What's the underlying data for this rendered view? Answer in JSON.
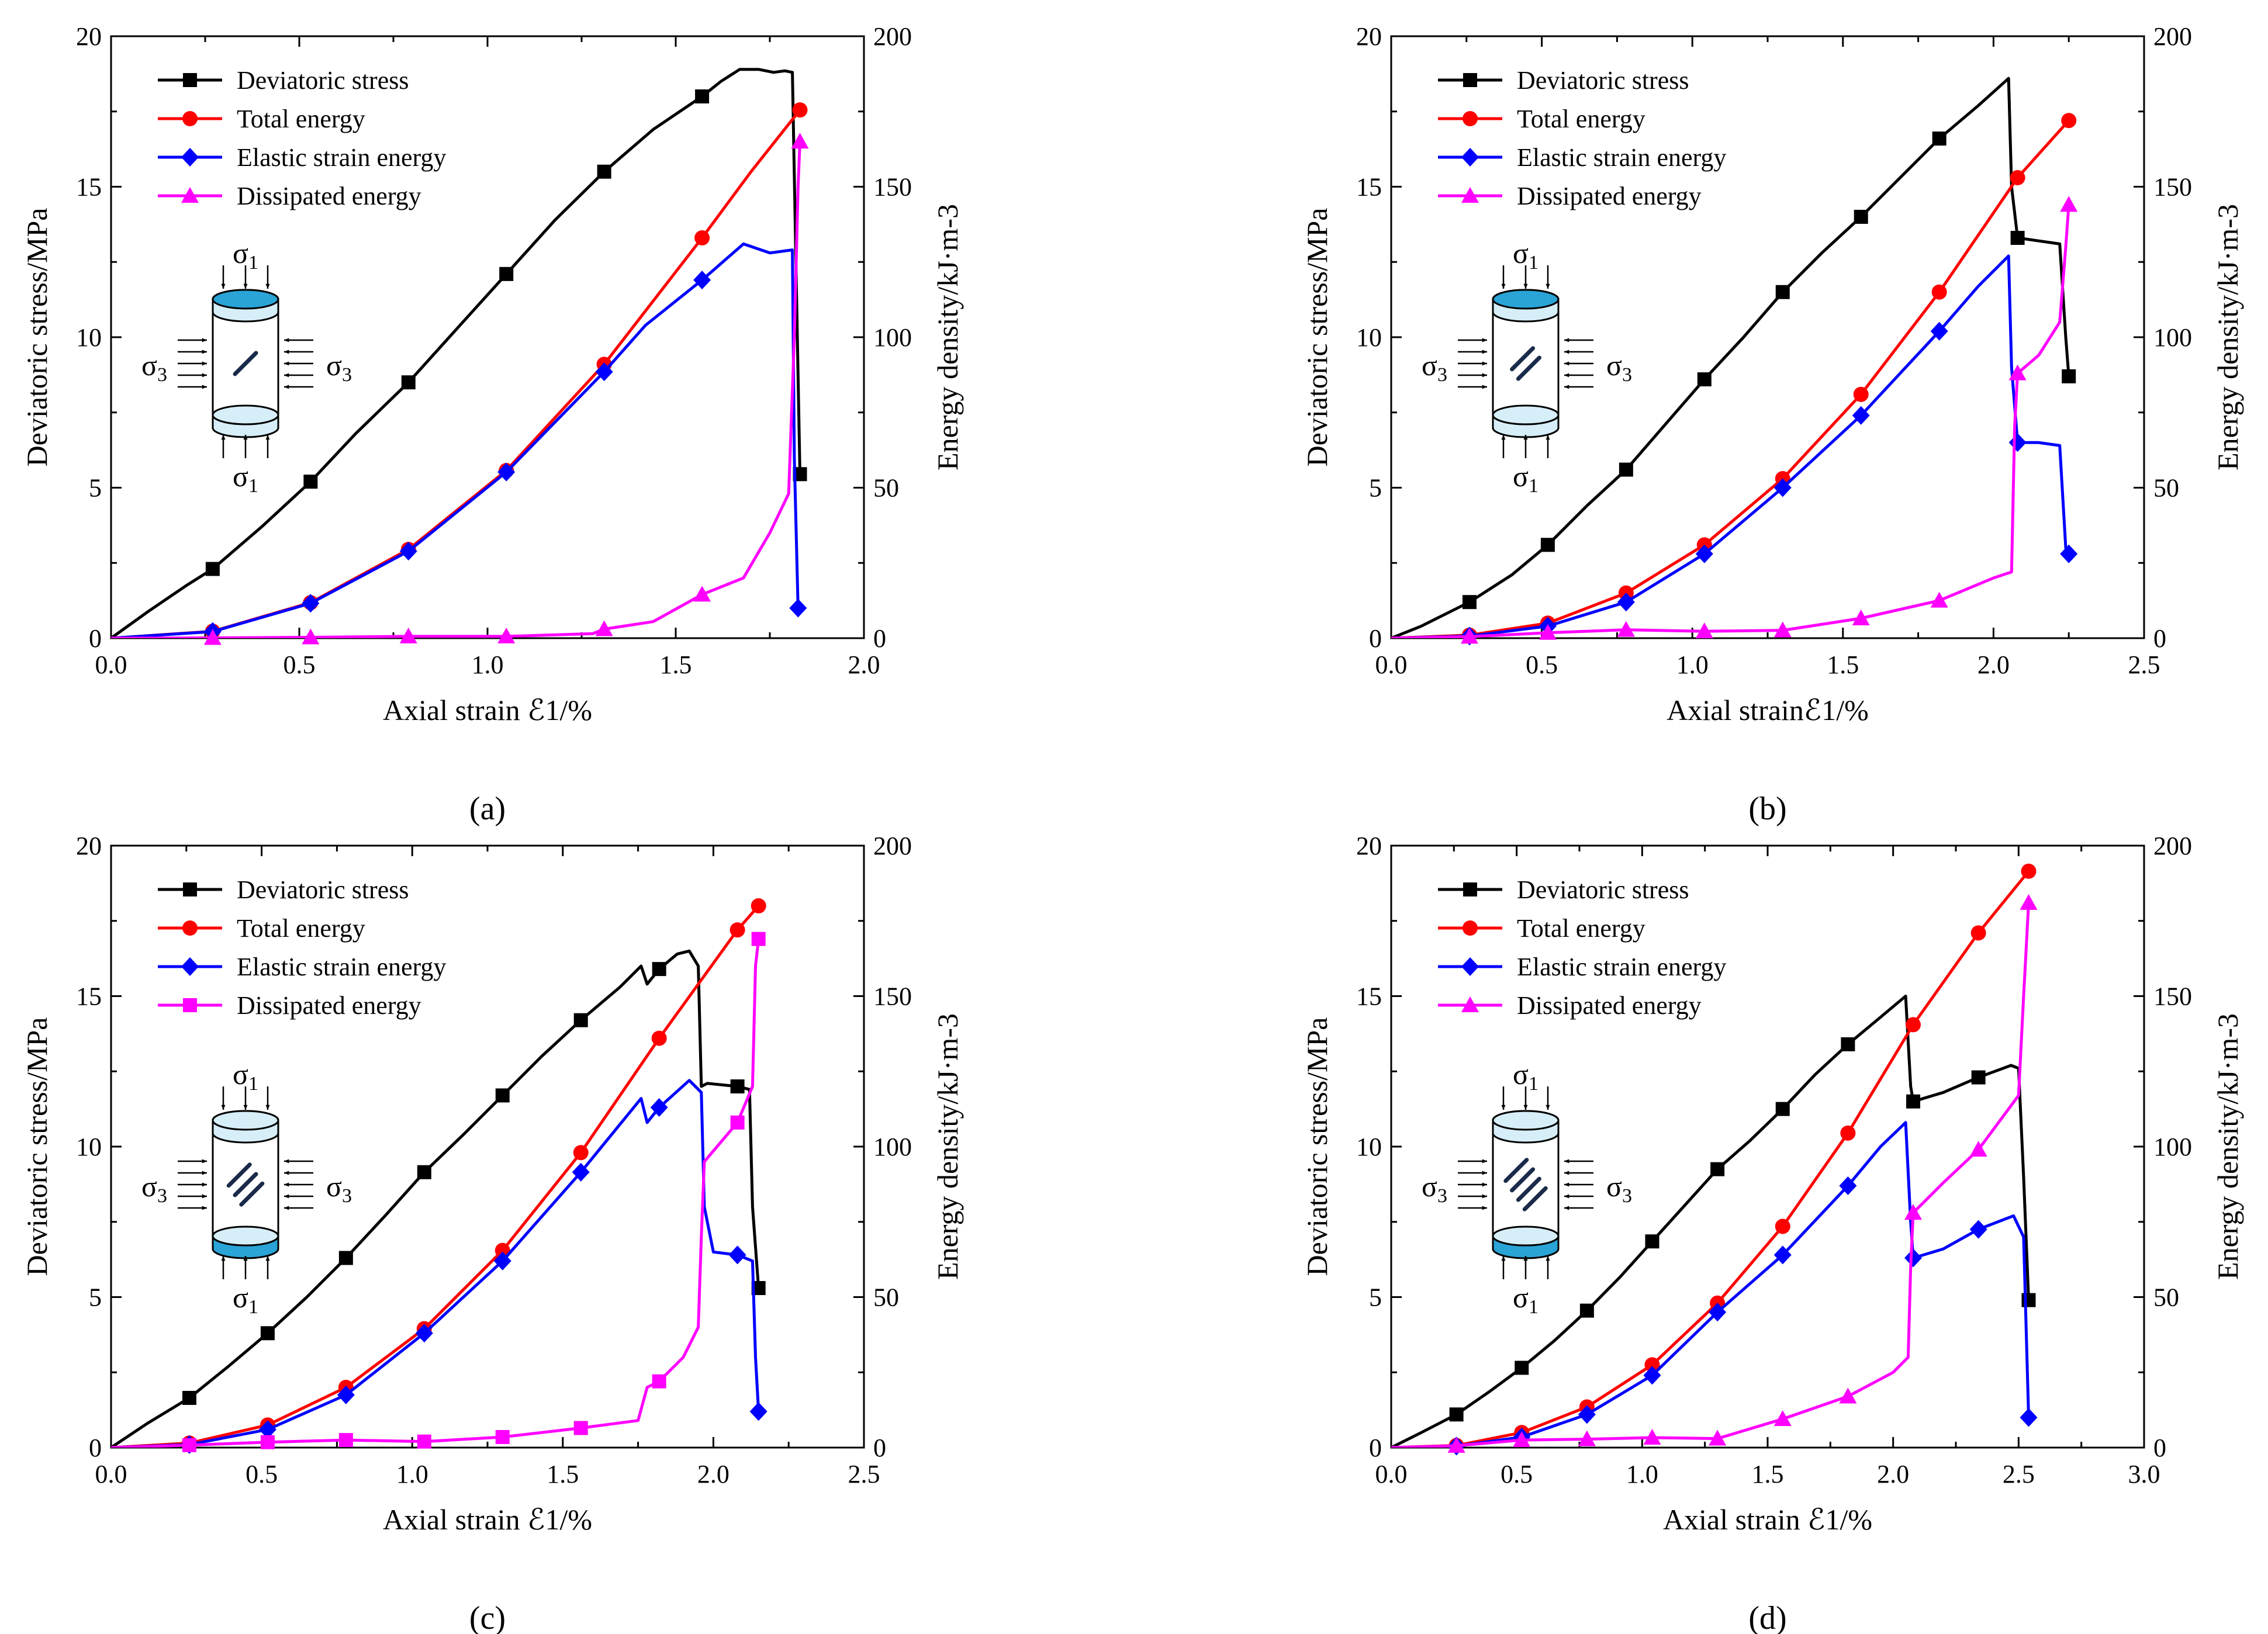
{
  "figure": {
    "panel_labels": [
      "(a)",
      "(b)",
      "(c)",
      "(d)"
    ],
    "sigma_top": "σ",
    "sigma_top_sub": "1",
    "sigma_side": "σ",
    "sigma_side_sub": "3",
    "colors": {
      "deviatoric": "#000000",
      "total": "#ff0000",
      "elastic": "#0000ff",
      "dissipated": "#ff00ff",
      "specimen_light": "#d6eef8",
      "specimen_accent": "#2aa3d6",
      "fracture": "#1a2a4a"
    }
  },
  "chart_data": [
    {
      "type": "line",
      "panel": "(a)",
      "xlabel": "Axial strain ℰ1/%",
      "ylabel": "Deviatoric stress/MPa",
      "y2label": "Energy density/kJ·m-3",
      "xlim": [
        0,
        2.0
      ],
      "xticks": [
        "0.0",
        "0.5",
        "1.0",
        "1.5",
        "2.0"
      ],
      "ylim": [
        0,
        20
      ],
      "yticks": [
        "0",
        "5",
        "10",
        "15",
        "20"
      ],
      "y2lim": [
        0,
        200
      ],
      "y2ticks": [
        "0",
        "50",
        "100",
        "150",
        "200"
      ],
      "specimen": {
        "cracks": 1,
        "accent": "top"
      },
      "series": [
        {
          "name": "Deviatoric stress",
          "axis": "left",
          "marker": "square",
          "x": [
            0,
            0.1,
            0.2,
            0.27,
            0.4,
            0.53,
            0.65,
            0.79,
            0.92,
            1.05,
            1.18,
            1.31,
            1.44,
            1.57,
            1.62,
            1.67,
            1.72,
            1.76,
            1.79,
            1.81,
            1.82,
            1.83
          ],
          "y": [
            0,
            0.9,
            1.75,
            2.3,
            3.7,
            5.2,
            6.8,
            8.5,
            10.3,
            12.1,
            13.9,
            15.5,
            16.9,
            18.0,
            18.5,
            18.9,
            18.9,
            18.8,
            18.85,
            18.8,
            12.0,
            5.45
          ],
          "markers_x": [
            0.27,
            0.53,
            0.79,
            1.05,
            1.31,
            1.57,
            1.83
          ]
        },
        {
          "name": "Total energy",
          "axis": "right",
          "marker": "circle",
          "x": [
            0,
            0.27,
            0.53,
            0.79,
            1.05,
            1.31,
            1.57,
            1.7,
            1.83
          ],
          "y": [
            0,
            2.3,
            11.8,
            29.5,
            55.7,
            91,
            133,
            155,
            175.5
          ],
          "markers_x": [
            0.27,
            0.53,
            0.79,
            1.05,
            1.31,
            1.57,
            1.83
          ]
        },
        {
          "name": "Elastic strain energy",
          "axis": "right",
          "marker": "diamond",
          "x": [
            0,
            0.27,
            0.53,
            0.79,
            1.05,
            1.31,
            1.42,
            1.57,
            1.68,
            1.75,
            1.81,
            1.815,
            1.825
          ],
          "y": [
            0,
            2.2,
            11.6,
            28.9,
            55.2,
            88.5,
            104,
            119,
            131,
            128,
            129,
            60,
            10
          ],
          "markers_x": [
            0.27,
            0.53,
            0.79,
            1.05,
            1.31,
            1.57,
            1.825
          ]
        },
        {
          "name": "Dissipated energy",
          "axis": "right",
          "marker": "triangle",
          "x": [
            0,
            0.27,
            0.53,
            0.79,
            1.05,
            1.28,
            1.31,
            1.44,
            1.57,
            1.68,
            1.75,
            1.8,
            1.815,
            1.825,
            1.83
          ],
          "y": [
            0,
            0.1,
            0.3,
            0.6,
            0.6,
            1.5,
            3,
            5.5,
            14.5,
            20,
            35,
            48,
            100,
            150,
            165
          ],
          "markers_x": [
            0.27,
            0.53,
            0.79,
            1.05,
            1.31,
            1.57,
            1.83
          ]
        }
      ]
    },
    {
      "type": "line",
      "panel": "(b)",
      "xlabel": "Axial strainℰ1/%",
      "ylabel": "Deviatoric stress/MPa",
      "y2label": "Energy density/kJ·m-3",
      "xlim": [
        0,
        2.5
      ],
      "xticks": [
        "0.0",
        "0.5",
        "1.0",
        "1.5",
        "2.0",
        "2.5"
      ],
      "ylim": [
        0,
        20
      ],
      "yticks": [
        "0",
        "5",
        "10",
        "15",
        "20"
      ],
      "y2lim": [
        0,
        200
      ],
      "y2ticks": [
        "0",
        "50",
        "100",
        "150",
        "200"
      ],
      "specimen": {
        "cracks": 2,
        "accent": "top"
      },
      "series": [
        {
          "name": "Deviatoric stress",
          "axis": "left",
          "marker": "square",
          "x": [
            0,
            0.1,
            0.26,
            0.4,
            0.52,
            0.65,
            0.78,
            0.91,
            1.04,
            1.17,
            1.3,
            1.43,
            1.56,
            1.69,
            1.82,
            1.95,
            2.05,
            2.06,
            2.08,
            2.15,
            2.22,
            2.24,
            2.25
          ],
          "y": [
            0,
            0.4,
            1.2,
            2.1,
            3.1,
            4.4,
            5.6,
            7.1,
            8.6,
            10.0,
            11.5,
            12.8,
            14.0,
            15.3,
            16.6,
            17.7,
            18.6,
            15.0,
            13.3,
            13.2,
            13.1,
            10.0,
            8.7
          ],
          "markers_x": [
            0.26,
            0.52,
            0.78,
            1.04,
            1.3,
            1.56,
            1.82,
            2.08,
            2.25
          ]
        },
        {
          "name": "Total energy",
          "axis": "right",
          "marker": "circle",
          "x": [
            0,
            0.26,
            0.52,
            0.78,
            1.04,
            1.3,
            1.56,
            1.82,
            2.08,
            2.25
          ],
          "y": [
            0,
            1,
            5,
            15,
            31,
            53,
            81,
            115,
            153,
            172
          ],
          "markers_x": [
            0.26,
            0.52,
            0.78,
            1.04,
            1.3,
            1.56,
            1.82,
            2.08,
            2.25
          ]
        },
        {
          "name": "Elastic strain energy",
          "axis": "right",
          "marker": "diamond",
          "x": [
            0,
            0.26,
            0.52,
            0.78,
            1.04,
            1.3,
            1.56,
            1.82,
            1.95,
            2.05,
            2.06,
            2.08,
            2.15,
            2.22,
            2.24,
            2.25
          ],
          "y": [
            0,
            0.7,
            4,
            12,
            28,
            50,
            74,
            102,
            117,
            127,
            90,
            65,
            65,
            64,
            30,
            28
          ],
          "markers_x": [
            0.26,
            0.52,
            0.78,
            1.04,
            1.3,
            1.56,
            1.82,
            2.08,
            2.25
          ]
        },
        {
          "name": "Dissipated energy",
          "axis": "right",
          "marker": "triangle",
          "x": [
            0,
            0.26,
            0.52,
            0.78,
            1.04,
            1.3,
            1.56,
            1.82,
            2.0,
            2.06,
            2.07,
            2.08,
            2.15,
            2.22,
            2.24,
            2.25
          ],
          "y": [
            0,
            0.5,
            1.8,
            2.8,
            2.3,
            2.6,
            6.6,
            12.5,
            20,
            22,
            70,
            88,
            94,
            105,
            130,
            144
          ],
          "markers_x": [
            0.26,
            0.52,
            0.78,
            1.04,
            1.3,
            1.56,
            1.82,
            2.08,
            2.25
          ]
        }
      ]
    },
    {
      "type": "line",
      "panel": "(c)",
      "xlabel": "Axial strain ℰ1/%",
      "ylabel": "Deviatoric stress/MPa",
      "y2label": "Energy density/kJ·m-3",
      "xlim": [
        0,
        2.5
      ],
      "xticks": [
        "0.0",
        "0.5",
        "1.0",
        "1.5",
        "2.0",
        "2.5"
      ],
      "ylim": [
        0,
        20
      ],
      "yticks": [
        "0",
        "5",
        "10",
        "15",
        "20"
      ],
      "y2lim": [
        0,
        200
      ],
      "y2ticks": [
        "0",
        "50",
        "100",
        "150",
        "200"
      ],
      "specimen": {
        "cracks": 3,
        "accent": "bottom"
      },
      "series": [
        {
          "name": "Deviatoric stress",
          "axis": "left",
          "marker": "square",
          "x": [
            0,
            0.12,
            0.26,
            0.39,
            0.52,
            0.65,
            0.78,
            0.91,
            1.04,
            1.17,
            1.3,
            1.43,
            1.56,
            1.69,
            1.76,
            1.78,
            1.82,
            1.88,
            1.92,
            1.95,
            1.96,
            1.98,
            2.08,
            2.12,
            2.13,
            2.15
          ],
          "y": [
            0,
            0.8,
            1.65,
            2.7,
            3.8,
            5.0,
            6.3,
            7.7,
            9.15,
            10.4,
            11.7,
            13.0,
            14.2,
            15.3,
            16.0,
            15.4,
            15.9,
            16.4,
            16.5,
            16.0,
            12.0,
            12.1,
            12.0,
            11.9,
            8.0,
            5.3
          ],
          "markers_x": [
            0.26,
            0.52,
            0.78,
            1.04,
            1.3,
            1.56,
            1.82,
            2.08,
            2.15
          ]
        },
        {
          "name": "Total energy",
          "axis": "right",
          "marker": "circle",
          "x": [
            0,
            0.26,
            0.52,
            0.78,
            1.04,
            1.3,
            1.56,
            1.82,
            2.08,
            2.15
          ],
          "y": [
            0,
            1.5,
            7.5,
            20,
            39.5,
            65.5,
            98,
            136,
            172,
            180
          ],
          "markers_x": [
            0.26,
            0.52,
            0.78,
            1.04,
            1.3,
            1.56,
            1.82,
            2.08,
            2.15
          ]
        },
        {
          "name": "Elastic strain energy",
          "axis": "right",
          "marker": "diamond",
          "x": [
            0,
            0.26,
            0.52,
            0.78,
            1.04,
            1.3,
            1.56,
            1.76,
            1.78,
            1.82,
            1.92,
            1.96,
            1.97,
            2.0,
            2.08,
            2.13,
            2.14,
            2.15
          ],
          "y": [
            0,
            1,
            6,
            17.5,
            38,
            62,
            91.5,
            116,
            108,
            113,
            122,
            118,
            80,
            65,
            64,
            62,
            30,
            12
          ],
          "markers_x": [
            0.26,
            0.52,
            0.78,
            1.04,
            1.3,
            1.56,
            1.82,
            2.08,
            2.15
          ]
        },
        {
          "name": "Dissipated energy",
          "axis": "right",
          "marker": "square",
          "x": [
            0,
            0.26,
            0.52,
            0.78,
            1.04,
            1.3,
            1.56,
            1.75,
            1.78,
            1.82,
            1.9,
            1.95,
            1.96,
            1.97,
            2.08,
            2.13,
            2.14,
            2.15
          ],
          "y": [
            0,
            0.8,
            1.8,
            2.5,
            2,
            3.5,
            6.5,
            9,
            20,
            22,
            30,
            40,
            70,
            95,
            108,
            120,
            160,
            169
          ],
          "markers_x": [
            0.26,
            0.52,
            0.78,
            1.04,
            1.3,
            1.56,
            1.82,
            2.08,
            2.15
          ]
        }
      ]
    },
    {
      "type": "line",
      "panel": "(d)",
      "xlabel": "Axial strain ℰ1/%",
      "ylabel": "Deviatoric stress/MPa",
      "y2label": "Energy density/kJ·m-3",
      "xlim": [
        0,
        3.0
      ],
      "xticks": [
        "0.0",
        "0.5",
        "1.0",
        "1.5",
        "2.0",
        "2.5",
        "3.0"
      ],
      "ylim": [
        0,
        20
      ],
      "yticks": [
        "0",
        "5",
        "10",
        "15",
        "20"
      ],
      "y2lim": [
        0,
        200
      ],
      "y2ticks": [
        "0",
        "50",
        "100",
        "150",
        "200"
      ],
      "specimen": {
        "cracks": 4,
        "accent": "bottom"
      },
      "series": [
        {
          "name": "Deviatoric stress",
          "axis": "left",
          "marker": "square",
          "x": [
            0,
            0.12,
            0.26,
            0.39,
            0.52,
            0.65,
            0.78,
            0.91,
            1.04,
            1.17,
            1.3,
            1.43,
            1.56,
            1.69,
            1.82,
            1.95,
            2.05,
            2.07,
            2.08,
            2.2,
            2.34,
            2.47,
            2.5,
            2.52,
            2.54
          ],
          "y": [
            0,
            0.5,
            1.1,
            1.85,
            2.65,
            3.55,
            4.55,
            5.65,
            6.85,
            8.05,
            9.25,
            10.2,
            11.25,
            12.4,
            13.4,
            14.3,
            15.0,
            12.0,
            11.5,
            11.8,
            12.3,
            12.7,
            12.6,
            9.0,
            4.9
          ],
          "markers_x": [
            0.26,
            0.52,
            0.78,
            1.04,
            1.3,
            1.56,
            1.82,
            2.08,
            2.34,
            2.54
          ]
        },
        {
          "name": "Total energy",
          "axis": "right",
          "marker": "circle",
          "x": [
            0,
            0.26,
            0.52,
            0.78,
            1.04,
            1.3,
            1.56,
            1.82,
            2.08,
            2.34,
            2.54
          ],
          "y": [
            0,
            0.7,
            5,
            13.5,
            27.5,
            48,
            73.5,
            104.5,
            140.5,
            171,
            191.5
          ],
          "markers_x": [
            0.26,
            0.52,
            0.78,
            1.04,
            1.3,
            1.56,
            1.82,
            2.08,
            2.34,
            2.54
          ]
        },
        {
          "name": "Elastic strain energy",
          "axis": "right",
          "marker": "diamond",
          "x": [
            0,
            0.26,
            0.52,
            0.78,
            1.04,
            1.3,
            1.56,
            1.82,
            1.95,
            2.05,
            2.07,
            2.08,
            2.2,
            2.34,
            2.48,
            2.52,
            2.54
          ],
          "y": [
            0,
            0.5,
            3.5,
            11,
            24,
            45,
            64,
            87,
            100,
            108,
            75,
            63,
            66,
            72.5,
            77,
            70,
            10
          ],
          "markers_x": [
            0.26,
            0.52,
            0.78,
            1.04,
            1.3,
            1.56,
            1.82,
            2.08,
            2.34,
            2.54
          ]
        },
        {
          "name": "Dissipated energy",
          "axis": "right",
          "marker": "triangle",
          "x": [
            0,
            0.26,
            0.52,
            0.78,
            1.04,
            1.3,
            1.56,
            1.82,
            2.0,
            2.06,
            2.07,
            2.08,
            2.2,
            2.34,
            2.5,
            2.52,
            2.54
          ],
          "y": [
            0,
            0.6,
            2.5,
            2.8,
            3.3,
            3.0,
            9.5,
            17,
            25,
            30,
            60,
            78,
            88,
            99,
            117,
            150,
            181
          ],
          "markers_x": [
            0.26,
            0.52,
            0.78,
            1.04,
            1.3,
            1.56,
            1.82,
            2.08,
            2.34,
            2.54
          ]
        }
      ]
    }
  ]
}
